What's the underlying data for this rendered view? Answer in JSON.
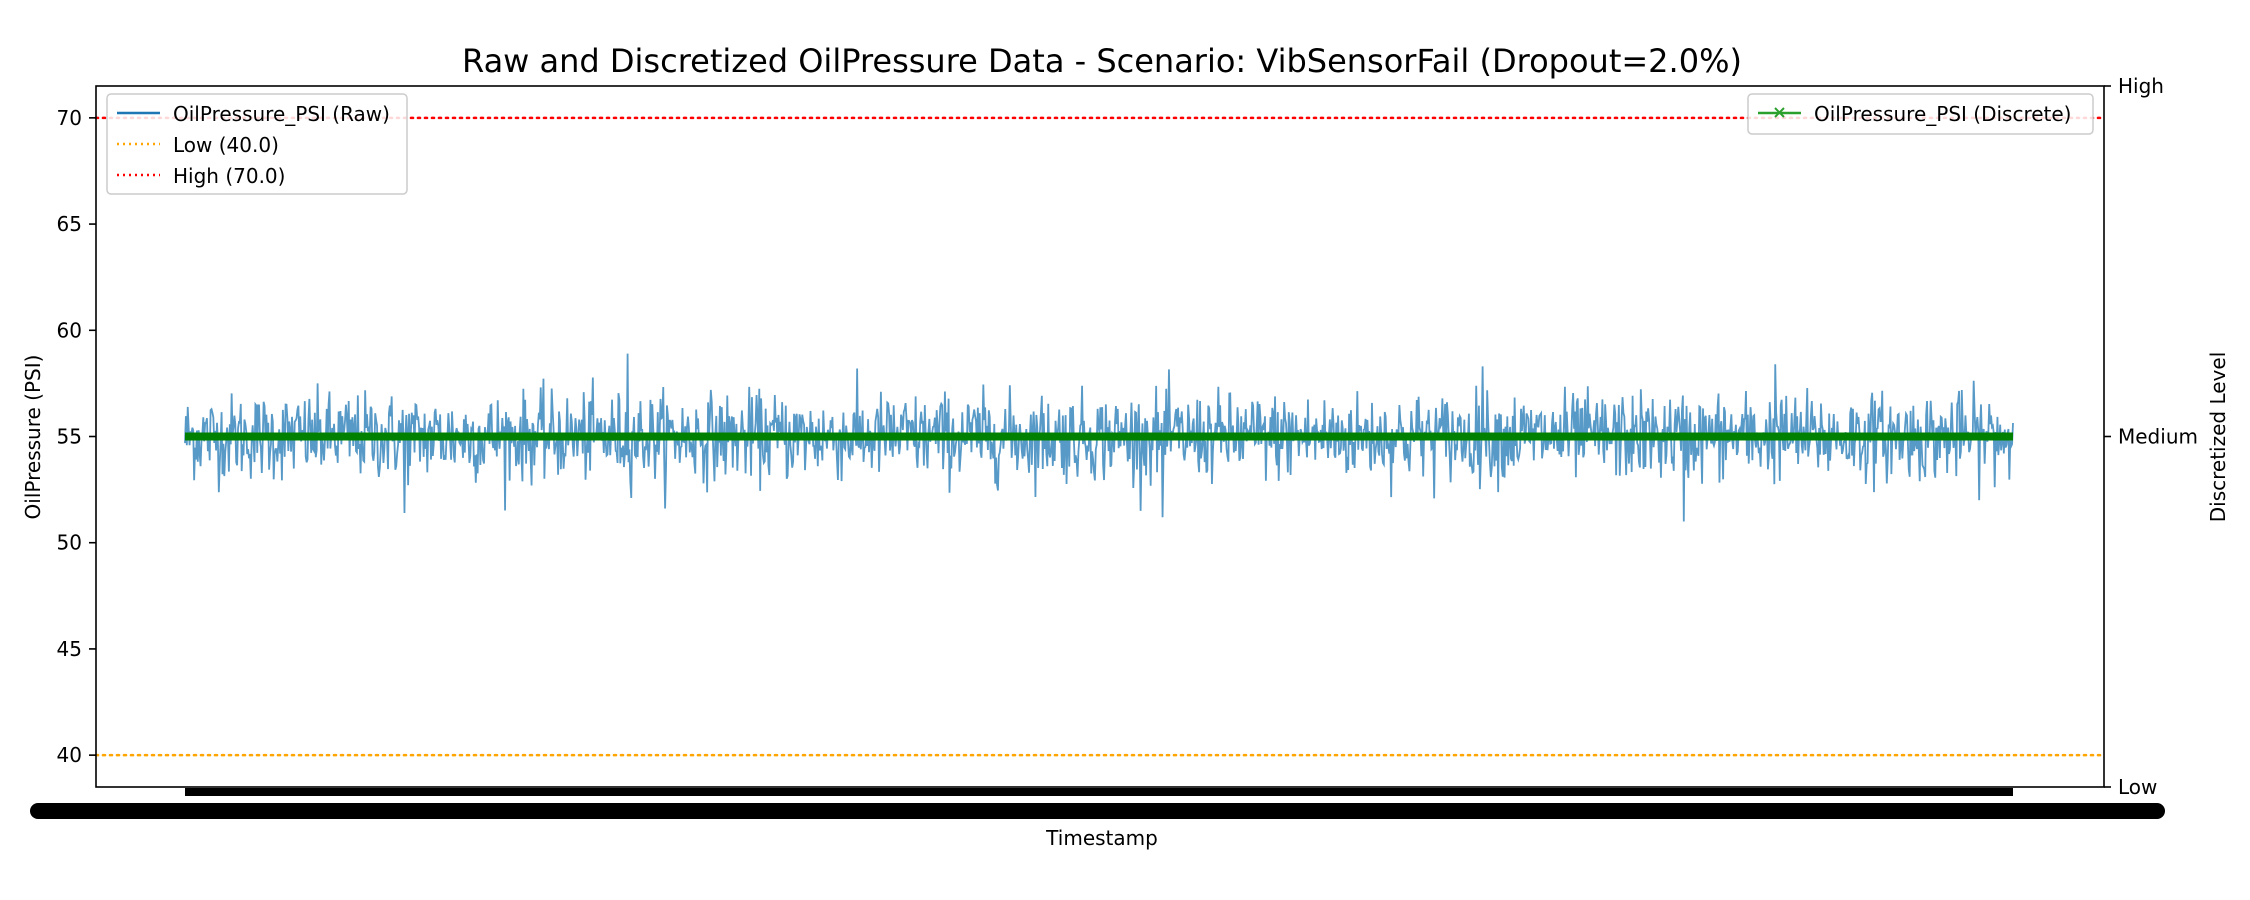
{
  "chart_data": {
    "type": "line",
    "title": "Raw and Discretized OilPressure Data - Scenario: VibSensorFail (Dropout=2.0%)",
    "xlabel": "Timestamp",
    "ylabel": "OilPressure (PSI)",
    "y2label": "Discretized Level",
    "ylim": [
      38.5,
      71.5
    ],
    "yticks": [
      40,
      45,
      50,
      55,
      60,
      65,
      70
    ],
    "y2ticks": [
      "Low",
      "Medium",
      "High"
    ],
    "grid": false,
    "legend_left_placement": "upper-left",
    "legend_right_placement": "upper-right",
    "x_tick_labels_overlapping": true,
    "series": [
      {
        "name": "OilPressure_PSI (Raw)",
        "axis": "left",
        "style": "solid",
        "color": "#1f77b4",
        "n_points": 2000,
        "approx_mean": 55.0,
        "approx_std": 1.0,
        "approx_min": 51.0,
        "approx_max": 59.0,
        "peaks": [
          {
            "t": 0.242,
            "v": 58.9
          },
          {
            "t": 0.87,
            "v": 58.4
          },
          {
            "t": 0.71,
            "v": 58.3
          },
          {
            "t": 0.82,
            "v": 51.0
          },
          {
            "t": 0.12,
            "v": 51.4
          },
          {
            "t": 0.535,
            "v": 51.2
          }
        ]
      },
      {
        "name": "OilPressure_PSI (Discrete)",
        "axis": "right",
        "style": "solid-marker-x",
        "color": "#008000",
        "level": "Medium"
      }
    ],
    "reference_lines": [
      {
        "name": "Low (40.0)",
        "value": 40.0,
        "color": "#ffa500",
        "style": "dotted"
      },
      {
        "name": "High (70.0)",
        "value": 70.0,
        "color": "#ff0000",
        "style": "dotted"
      }
    ],
    "legend_left": [
      "OilPressure_PSI (Raw)",
      "Low (40.0)",
      "High (70.0)"
    ],
    "legend_right": [
      "OilPressure_PSI (Discrete)"
    ]
  }
}
